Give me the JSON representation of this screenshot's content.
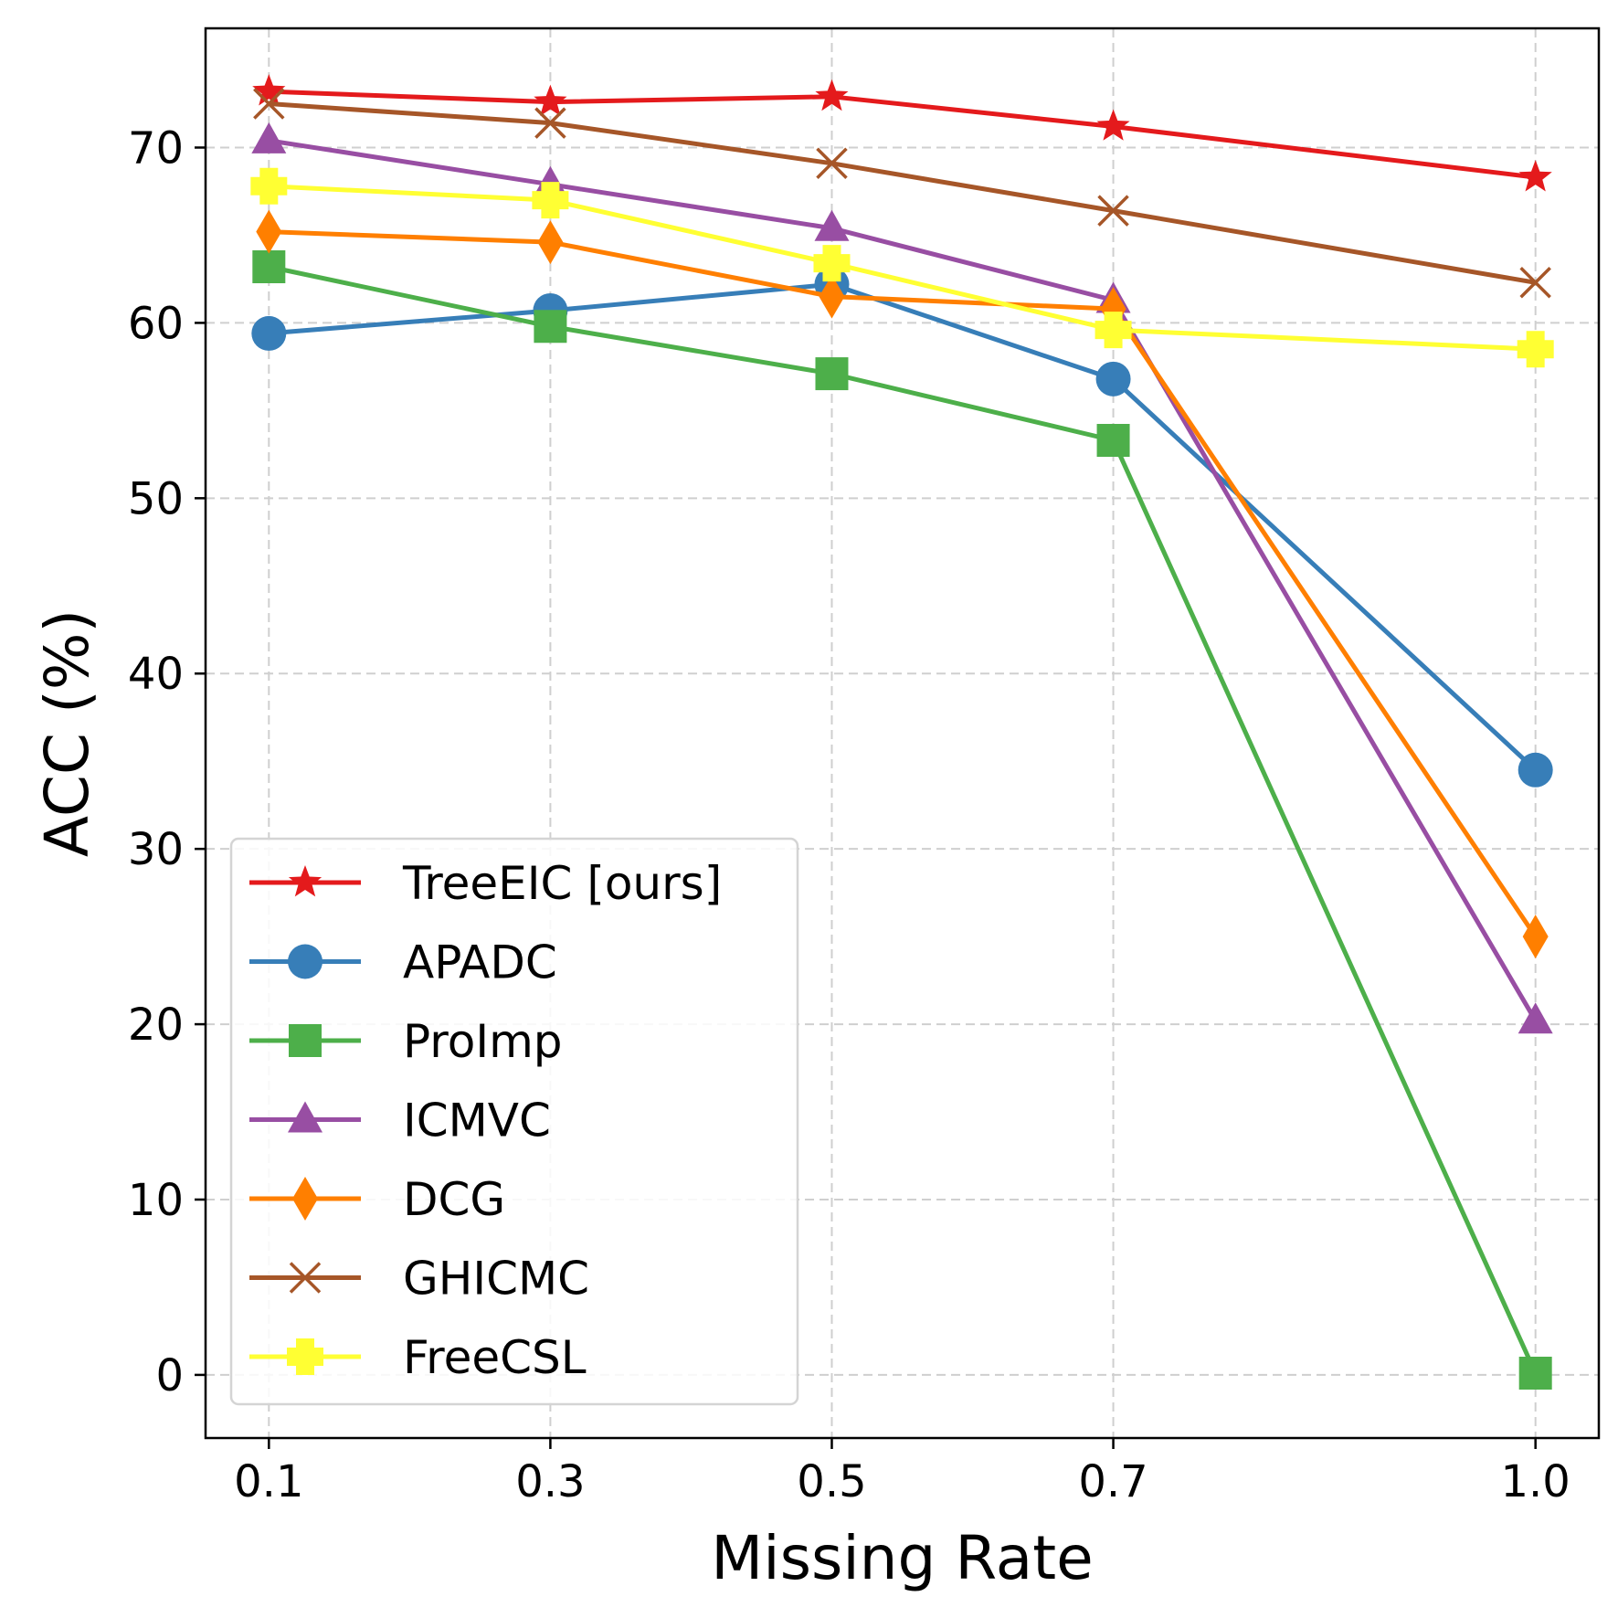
{
  "chart_data": {
    "type": "line",
    "title": "",
    "xlabel": "Missing Rate",
    "ylabel": "ACC (%)",
    "x": [
      0.1,
      0.3,
      0.5,
      0.7,
      1.0
    ],
    "x_tick_labels": [
      "0.1",
      "0.3",
      "0.5",
      "0.7",
      "1.0"
    ],
    "xlim": [
      0.055,
      1.045
    ],
    "y_ticks": [
      0,
      10,
      20,
      30,
      40,
      50,
      60,
      70
    ],
    "y_tick_labels": [
      "0",
      "10",
      "20",
      "30",
      "40",
      "50",
      "60",
      "70"
    ],
    "ylim": [
      -3.6,
      76.8
    ],
    "grid": true,
    "legend_position": "lower-left",
    "series": [
      {
        "name": "TreeEIC [ours]",
        "color": "#e41a1c",
        "marker": "star",
        "values": [
          73.2,
          72.6,
          72.9,
          71.2,
          68.3
        ]
      },
      {
        "name": "APADC",
        "color": "#377eb8",
        "marker": "circle",
        "values": [
          59.4,
          60.7,
          62.2,
          56.8,
          34.5
        ]
      },
      {
        "name": "ProImp",
        "color": "#4daf4a",
        "marker": "square",
        "values": [
          63.2,
          59.8,
          57.1,
          53.3,
          0.1
        ]
      },
      {
        "name": "ICMVC",
        "color": "#984ea3",
        "marker": "triangle",
        "values": [
          70.4,
          67.9,
          65.4,
          61.3,
          20.2
        ]
      },
      {
        "name": "DCG",
        "color": "#ff7f00",
        "marker": "diamond",
        "values": [
          65.2,
          64.6,
          61.5,
          60.8,
          25.0
        ]
      },
      {
        "name": "GHICMC",
        "color": "#a65628",
        "marker": "x",
        "values": [
          72.5,
          71.4,
          69.1,
          66.4,
          62.3
        ]
      },
      {
        "name": "FreeCSL",
        "color": "#ffff33",
        "marker": "plus",
        "values": [
          67.8,
          67.0,
          63.4,
          59.6,
          58.5
        ]
      }
    ]
  }
}
